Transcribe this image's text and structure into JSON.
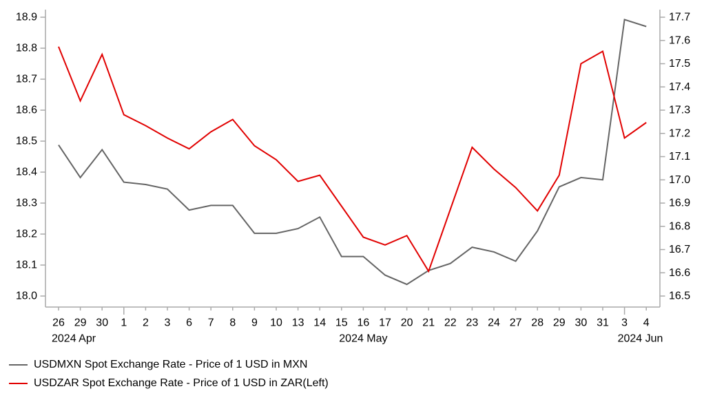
{
  "chart_data": {
    "type": "line",
    "title": "",
    "x_labels": [
      "26",
      "29",
      "30",
      "1",
      "2",
      "3",
      "6",
      "7",
      "8",
      "9",
      "10",
      "13",
      "14",
      "15",
      "16",
      "17",
      "20",
      "21",
      "22",
      "23",
      "24",
      "27",
      "28",
      "29",
      "30",
      "31",
      "3",
      "4"
    ],
    "month_labels": [
      {
        "text": "2024 Apr",
        "index": 0,
        "align": "start"
      },
      {
        "text": "2024 May",
        "index": 14,
        "align": "middle"
      },
      {
        "text": "2024 Jun",
        "index": 26,
        "align": "start"
      }
    ],
    "major_tick_indexes": [
      3,
      26
    ],
    "left_axis": {
      "min": 18.0,
      "max": 18.9,
      "step": 0.1,
      "ticks": [
        "18.0",
        "18.1",
        "18.2",
        "18.3",
        "18.4",
        "18.5",
        "18.6",
        "18.7",
        "18.8",
        "18.9"
      ]
    },
    "right_axis": {
      "min": 16.5,
      "max": 17.7,
      "step": 0.1,
      "ticks": [
        "16.5",
        "16.6",
        "16.7",
        "16.8",
        "16.9",
        "17.0",
        "17.1",
        "17.2",
        "17.3",
        "17.4",
        "17.5",
        "17.6",
        "17.7"
      ]
    },
    "series": [
      {
        "id": "usdmxn",
        "name": "USDMXN Spot Exchange Rate - Price of 1 USD in MXN",
        "color": "#646464",
        "axis": "right",
        "values": [
          17.15,
          17.01,
          17.13,
          16.99,
          16.98,
          16.96,
          16.87,
          16.89,
          16.89,
          16.77,
          16.77,
          16.79,
          16.84,
          16.67,
          16.67,
          16.59,
          16.55,
          16.61,
          16.64,
          16.71,
          16.69,
          16.65,
          16.78,
          16.97,
          17.01,
          17.0,
          17.69,
          17.66
        ]
      },
      {
        "id": "usdzar",
        "name": "USDZAR Spot Exchange Rate - Price of 1 USD in ZAR(Left)",
        "color": "#e10000",
        "axis": "left",
        "values": [
          18.805,
          18.63,
          18.78,
          18.585,
          18.55,
          18.51,
          18.475,
          18.53,
          18.57,
          18.485,
          18.44,
          18.37,
          18.39,
          18.29,
          18.19,
          18.165,
          18.195,
          18.08,
          18.28,
          18.48,
          18.41,
          18.35,
          18.275,
          18.39,
          18.75,
          18.79,
          18.51,
          18.56
        ]
      }
    ],
    "legend_position": "bottom-left",
    "grid": false,
    "axis_color": "#a9a9a9",
    "text_color": "#000000",
    "background": "#ffffff"
  }
}
